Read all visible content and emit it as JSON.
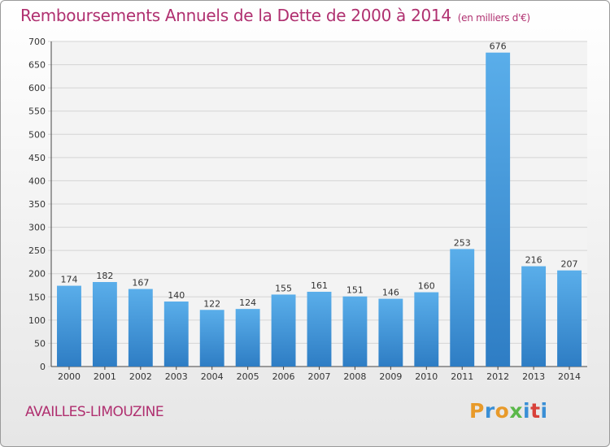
{
  "chart_data": {
    "type": "bar",
    "title": "Remboursements Annuels de la Dette de 2000 à 2014",
    "unit_label": "(en milliers d'€)",
    "categories": [
      "2000",
      "2001",
      "2002",
      "2003",
      "2004",
      "2005",
      "2006",
      "2007",
      "2008",
      "2009",
      "2010",
      "2011",
      "2012",
      "2013",
      "2014"
    ],
    "values": [
      174,
      182,
      167,
      140,
      122,
      124,
      155,
      161,
      151,
      146,
      160,
      253,
      676,
      216,
      207
    ],
    "ylim": [
      0,
      700
    ],
    "yticks": [
      0,
      50,
      100,
      150,
      200,
      250,
      300,
      350,
      400,
      450,
      500,
      550,
      600,
      650,
      700
    ],
    "xlabel": "",
    "ylabel": "",
    "grid": true,
    "colors": {
      "bar_light": "#5aaeea",
      "bar_dark": "#2e7dc4",
      "grid": "#d4d4d4",
      "text": "#333333",
      "accent": "#b03070"
    }
  },
  "footer": {
    "commune": "AVAILLES-LIMOUZINE",
    "logo_letters": [
      "P",
      "r",
      "o",
      "x",
      "i",
      "t",
      "i"
    ]
  }
}
